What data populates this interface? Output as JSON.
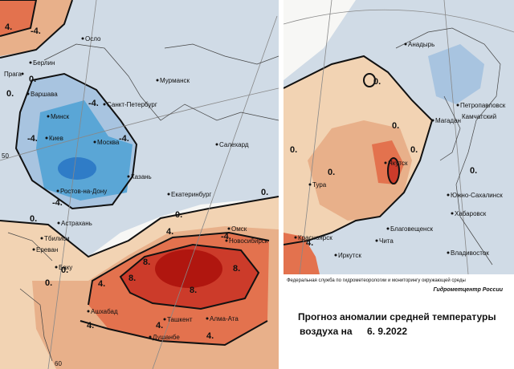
{
  "colors": {
    "land": "#f7f7f5",
    "light_blue": "#d0dbe6",
    "blue": "#a8c4e0",
    "mid_blue": "#5aa6d6",
    "dark_blue": "#2f7cc7",
    "light_orange": "#f2d3b3",
    "orange": "#e8b08a",
    "red_orange": "#e3724e",
    "red": "#cc3b2a",
    "dark_red": "#b0160f",
    "contour": "#111111"
  },
  "left_map": {
    "cities": [
      "Осло",
      "Берлин",
      "Прага",
      "Варшава",
      "Минск",
      "Санкт-Петербург",
      "Мурманск",
      "Киев",
      "Москва",
      "Казань",
      "Ростов-на-Дону",
      "Салехард",
      "Екатеринбург",
      "Астрахань",
      "Омск",
      "Новосибирск",
      "Тбилиси",
      "Ереван",
      "Баку",
      "Ашхабад",
      "Ташкент",
      "Алма-Ата",
      "Душанбе"
    ],
    "isolines": [
      "-4.",
      "0.",
      "0.",
      "-4.",
      "-4.",
      "-4.",
      "-4.",
      "-4.",
      "0.",
      "0.",
      "0.",
      "4.",
      "8.",
      "8.",
      "8.",
      "8.",
      "4.",
      "4.",
      "4.",
      "4.",
      "0.",
      "0.",
      "4."
    ],
    "graticule": [
      "50",
      "60"
    ]
  },
  "right_map": {
    "cities": [
      "Анадырь",
      "Магадан",
      "Петропавловск",
      "Камчатский",
      "Якутск",
      "Тура",
      "Благовещенск",
      "Южно-Сахалинск",
      "Хабаровск",
      "Красноярск",
      "Иркутск",
      "Чита",
      "Владивосток"
    ],
    "isolines": [
      "0.",
      "0.",
      "0.",
      "0.",
      "0.",
      "4.",
      "0."
    ]
  },
  "caption": {
    "agency": "Федеральная служба по гидрометеорологии и мониторингу окружающей среды",
    "center": "Гидрометцентр России",
    "title_line1": "Прогноз аномалии средней температуры",
    "title_line2": "воздуха на",
    "date": "6. 9.2022"
  }
}
